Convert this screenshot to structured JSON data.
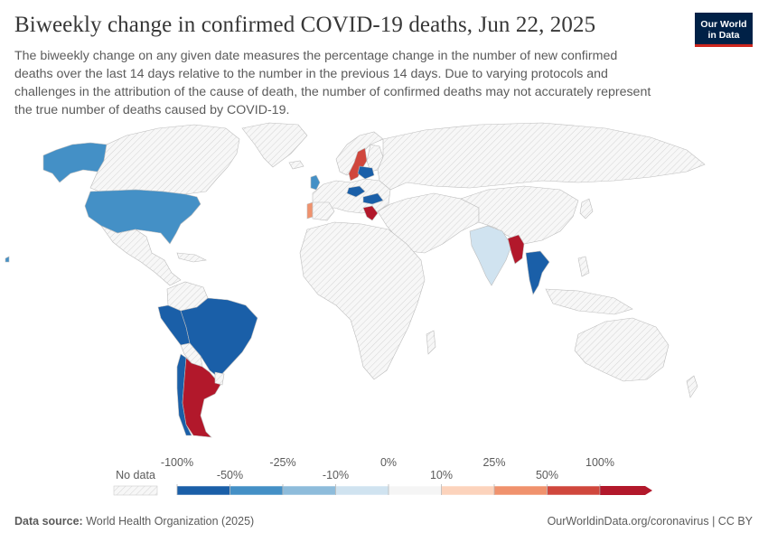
{
  "header": {
    "title": "Biweekly change in confirmed COVID-19 deaths, Jun 22, 2025",
    "subtitle": "The biweekly change on any given date measures the percentage change in the number of new confirmed deaths over the last 14 days relative to the number in the previous 14 days. Due to varying protocols and challenges in the attribution of the cause of death, the number of confirmed deaths may not accurately represent the true number of deaths caused by COVID-19.",
    "logo_line1": "Our World",
    "logo_line2": "in Data"
  },
  "legend": {
    "no_data_label": "No data",
    "upper_ticks": [
      "-100%",
      "-25%",
      "0%",
      "25%",
      "100%"
    ],
    "lower_ticks": [
      "-50%",
      "-10%",
      "10%",
      "50%"
    ],
    "bins": [
      {
        "range": "-100% to -50%",
        "color": "#1a5fa8"
      },
      {
        "range": "-50% to -25%",
        "color": "#4490c6"
      },
      {
        "range": "-25% to -10%",
        "color": "#8ebcdb"
      },
      {
        "range": "-10% to 0%",
        "color": "#d0e3f0"
      },
      {
        "range": "0% to 10%",
        "color": "#f5f5f5"
      },
      {
        "range": "10% to 25%",
        "color": "#fcd3bc"
      },
      {
        "range": "25% to 50%",
        "color": "#f0926d"
      },
      {
        "range": "50% to 100%",
        "color": "#d0473d"
      },
      {
        "range": "> 100%",
        "color": "#b2182b"
      }
    ],
    "no_data_color": "#e8e8e8"
  },
  "map_data": {
    "no_data_color": "#ececec",
    "countries": [
      {
        "name": "Canada",
        "bin": "no-data"
      },
      {
        "name": "United States",
        "bin": "-50% to -25%"
      },
      {
        "name": "Brazil",
        "bin": "-100% to -50%"
      },
      {
        "name": "Argentina",
        "bin": "> 100%"
      },
      {
        "name": "India",
        "bin": "-10% to 0%"
      },
      {
        "name": "Thailand",
        "bin": "-100% to -50%"
      },
      {
        "name": "Myanmar",
        "bin": "> 100%"
      },
      {
        "name": "Sweden",
        "bin": "50% to 100%"
      },
      {
        "name": "Greece",
        "bin": "> 100%"
      },
      {
        "name": "Portugal",
        "bin": "25% to 50%"
      },
      {
        "name": "Hungary",
        "bin": "-100% to -50%"
      }
    ]
  },
  "footer": {
    "source_label": "Data source:",
    "source_value": "World Health Organization (2025)",
    "url": "OurWorldinData.org/coronavirus",
    "license": "CC BY"
  }
}
